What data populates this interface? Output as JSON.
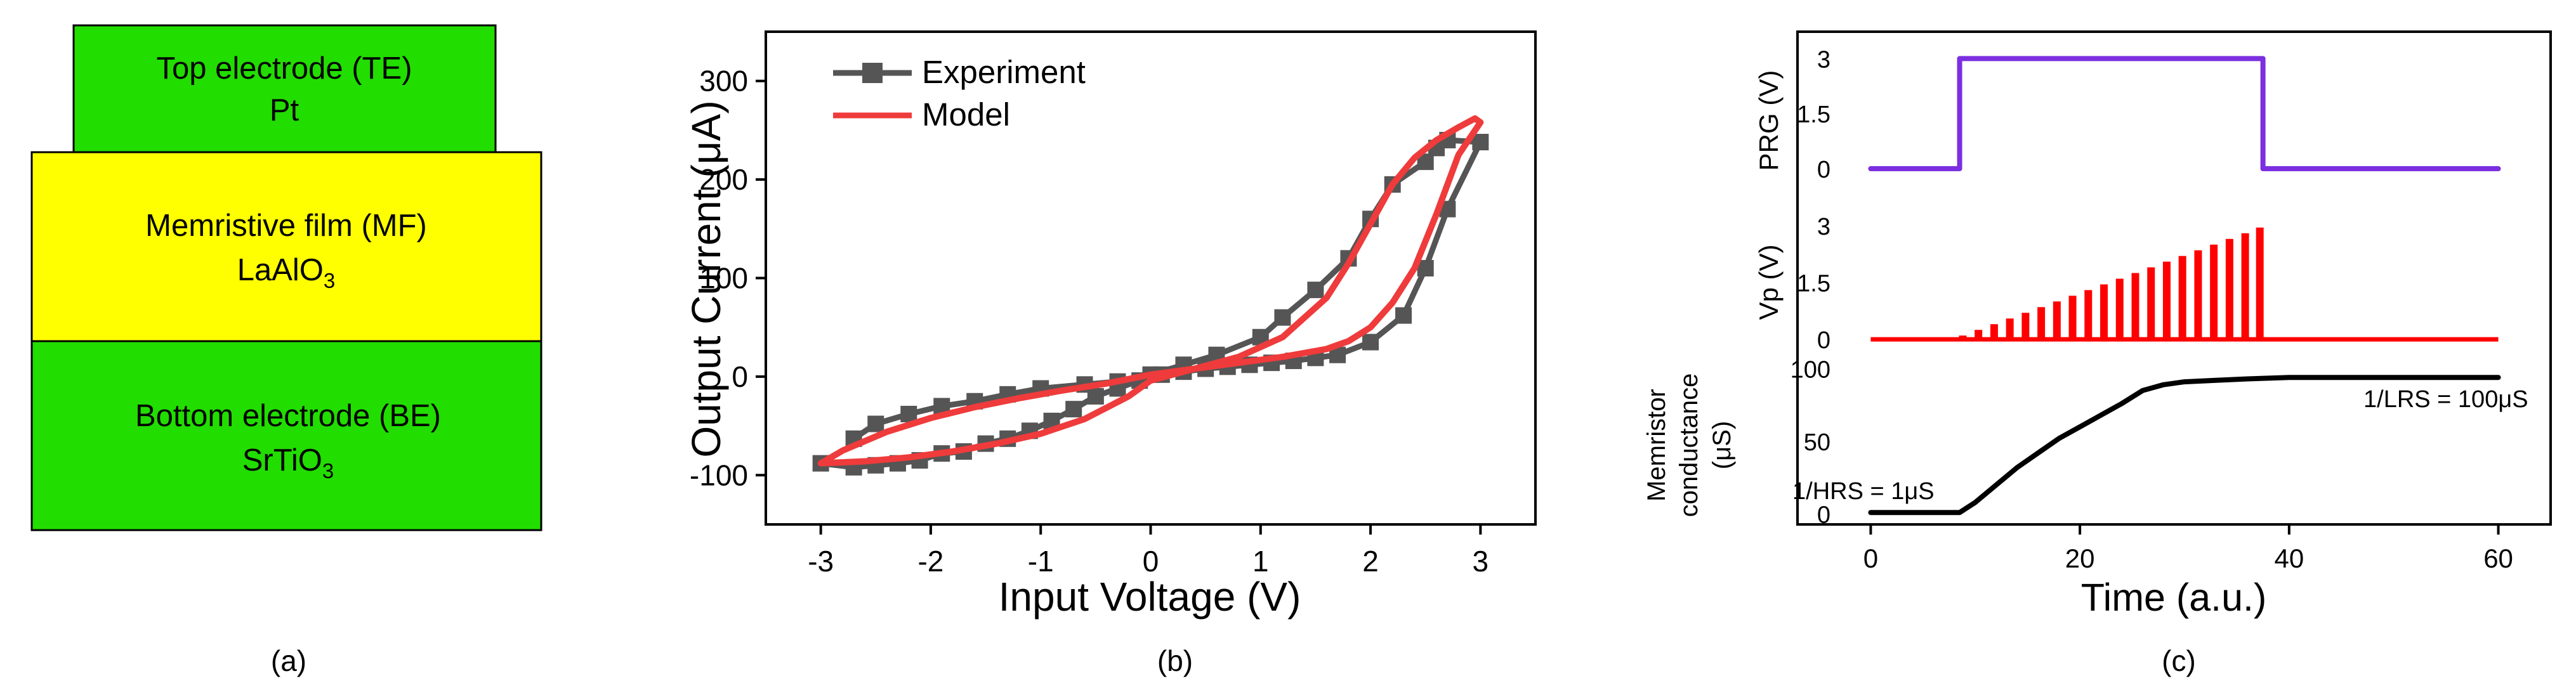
{
  "panel_a": {
    "caption": "(a)",
    "layers": [
      {
        "line1": "Top electrode (TE)",
        "line2": "Pt",
        "color": "#22dd00"
      },
      {
        "line1": "Memristive film (MF)",
        "line2_base": "LaAlO",
        "line2_sub": "3",
        "color": "#ffff00"
      },
      {
        "line1": "Bottom electrode (BE)",
        "line2_base": "SrTiO",
        "line2_sub": "3",
        "color": "#22dd00"
      }
    ]
  },
  "chart_data": [
    {
      "type": "line",
      "caption": "(b)",
      "xlabel": "Input Voltage (V)",
      "ylabel": "Output Current (μA)",
      "xlim": [
        -3.5,
        3.5
      ],
      "ylim": [
        -150,
        350
      ],
      "xticks": [
        -3,
        -2,
        -1,
        0,
        1,
        2,
        3
      ],
      "yticks": [
        -100,
        0,
        100,
        200,
        300
      ],
      "legend": [
        "Experiment",
        "Model"
      ],
      "series": [
        {
          "name": "Experiment",
          "color": "#555555",
          "marker": "square",
          "x": [
            -3.0,
            -2.7,
            -2.5,
            -2.3,
            -2.1,
            -1.9,
            -1.7,
            -1.5,
            -1.3,
            -1.1,
            -0.9,
            -0.7,
            -0.5,
            -0.3,
            -0.1,
            0.1,
            0.3,
            0.5,
            0.7,
            0.9,
            1.1,
            1.3,
            1.5,
            1.7,
            2.0,
            2.3,
            2.5,
            2.7,
            3.0,
            2.7,
            2.6,
            2.5,
            2.2,
            2.0,
            1.8,
            1.5,
            1.2,
            1.0,
            0.6,
            0.3,
            0.0,
            -0.3,
            -0.6,
            -1.0,
            -1.3,
            -1.6,
            -1.9,
            -2.2,
            -2.5,
            -2.7
          ],
          "y": [
            -88,
            -92,
            -90,
            -88,
            -85,
            -78,
            -76,
            -68,
            -63,
            -55,
            -45,
            -33,
            -20,
            -12,
            -4,
            2,
            5,
            8,
            10,
            12,
            14,
            16,
            19,
            22,
            35,
            62,
            110,
            170,
            238,
            240,
            232,
            218,
            195,
            160,
            120,
            88,
            60,
            40,
            22,
            12,
            2,
            -5,
            -8,
            -12,
            -18,
            -25,
            -30,
            -38,
            -48,
            -63
          ]
        },
        {
          "name": "Model",
          "color": "#ef3b3b",
          "x": [
            -3.0,
            -2.6,
            -2.2,
            -1.8,
            -1.4,
            -1.0,
            -0.6,
            -0.2,
            0.0,
            0.4,
            0.8,
            1.2,
            1.6,
            1.8,
            2.0,
            2.2,
            2.4,
            2.6,
            2.8,
            3.0,
            2.95,
            2.8,
            2.6,
            2.4,
            2.2,
            2.0,
            1.8,
            1.6,
            1.2,
            0.8,
            0.4,
            0.0,
            -0.4,
            -0.8,
            -1.2,
            -1.6,
            -2.0,
            -2.4,
            -2.8,
            -3.0
          ],
          "y": [
            -88,
            -86,
            -82,
            -76,
            -68,
            -58,
            -43,
            -20,
            -4,
            8,
            14,
            20,
            28,
            36,
            50,
            75,
            110,
            165,
            225,
            258,
            262,
            253,
            240,
            222,
            195,
            155,
            115,
            80,
            40,
            20,
            8,
            2,
            -7,
            -14,
            -22,
            -31,
            -42,
            -56,
            -75,
            -88
          ]
        }
      ]
    },
    {
      "type": "line",
      "caption": "(c)",
      "xlabel": "Time (a.u.)",
      "xlim": [
        -7,
        65
      ],
      "xticks": [
        0,
        20,
        40,
        60
      ],
      "subplots": [
        {
          "ylabel": "PRG (V)",
          "ylim": [
            -0.5,
            3.3
          ],
          "yticks": [
            "0",
            "1.5",
            "3"
          ],
          "series": [
            {
              "name": "PRG",
              "color": "#7b2fe0",
              "x": [
                0,
                8.5,
                8.5,
                37.5,
                37.5,
                60
              ],
              "y": [
                0,
                0,
                3,
                3,
                0,
                0
              ]
            }
          ]
        },
        {
          "ylabel": "Vp (V)",
          "ylim": [
            -0.5,
            3.6
          ],
          "yticks": [
            "0",
            "1.5",
            "3"
          ],
          "series": [
            {
              "name": "Vp",
              "color": "#ff0000",
              "type": "pulses",
              "baseline_x": [
                0,
                60
              ],
              "pulse_x": [
                8.8,
                10.3,
                11.8,
                13.3,
                14.8,
                16.3,
                17.8,
                19.3,
                20.8,
                22.3,
                23.8,
                25.3,
                26.8,
                28.3,
                29.8,
                31.3,
                32.8,
                34.3,
                35.8,
                37.2
              ],
              "pulse_y": [
                0.1,
                0.25,
                0.4,
                0.55,
                0.7,
                0.85,
                1.0,
                1.15,
                1.3,
                1.45,
                1.6,
                1.75,
                1.9,
                2.05,
                2.2,
                2.35,
                2.5,
                2.65,
                2.8,
                2.95
              ]
            }
          ]
        },
        {
          "ylabel_line1": "Memristor",
          "ylabel_line2": "conductance",
          "ylabel_line3": "(μS)",
          "ylim": [
            -5,
            105
          ],
          "yticks": [
            "0",
            "50",
            "100"
          ],
          "annotations": [
            "1/HRS = 1μS",
            "1/LRS = 100μS"
          ],
          "series": [
            {
              "name": "Conductance",
              "color": "#000000",
              "x": [
                0,
                8.5,
                10,
                12,
                14,
                16,
                18,
                20,
                22,
                24,
                26,
                28,
                30,
                33,
                36,
                40,
                45,
                50,
                60
              ],
              "y": [
                1,
                1,
                8,
                20,
                32,
                42,
                52,
                60,
                68,
                76,
                85,
                89,
                91,
                92,
                93,
                94,
                94,
                94,
                94
              ]
            }
          ]
        }
      ]
    }
  ]
}
